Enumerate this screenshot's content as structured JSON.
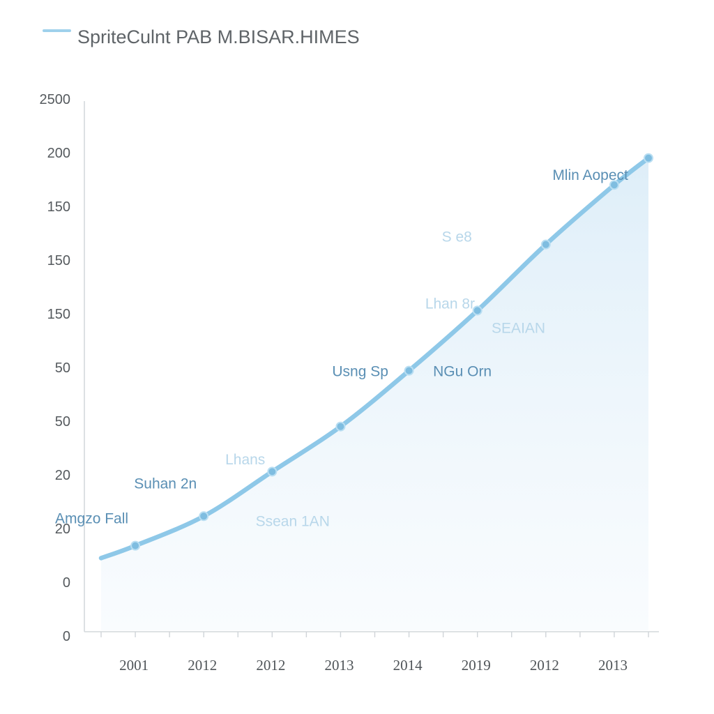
{
  "chart_data": {
    "type": "line",
    "title": "",
    "xlabel": "",
    "ylabel": "",
    "legend": {
      "position": "top-left",
      "entries": [
        {
          "name": "SpriteCulnt PAB M.BISAR.HIMES",
          "color": "#9fd1ec"
        }
      ]
    },
    "y_ticks": [
      "0",
      "0",
      "20",
      "20",
      "50",
      "50",
      "150",
      "150",
      "150",
      "200",
      "2500"
    ],
    "x_ticks": [
      "2001",
      "2012",
      "2012",
      "2013",
      "2014",
      "2019",
      "2012",
      "2013"
    ],
    "ylim": [
      0,
      10
    ],
    "series": [
      {
        "name": "SpriteCulnt PAB M.BISAR.HIMES",
        "color": "#8ec8e8",
        "fill_color": "#e8f3fb",
        "points": [
          {
            "x": 0.0,
            "y": 1.45
          },
          {
            "x": 0.5,
            "y": 1.68
          },
          {
            "x": 1.5,
            "y": 2.23
          },
          {
            "x": 2.5,
            "y": 3.06
          },
          {
            "x": 3.5,
            "y": 3.9
          },
          {
            "x": 4.5,
            "y": 4.94
          },
          {
            "x": 5.5,
            "y": 6.06
          },
          {
            "x": 6.5,
            "y": 7.29
          },
          {
            "x": 7.5,
            "y": 8.4
          },
          {
            "x": 8.0,
            "y": 8.9
          }
        ],
        "markers": [
          0.5,
          1.5,
          2.5,
          3.5,
          4.5,
          5.5,
          6.5,
          7.5,
          8.0
        ]
      }
    ],
    "annotations": [
      {
        "text": "Amgzo Fall",
        "x": 0.5,
        "y": 2.2,
        "style": "strong",
        "anchor": "end"
      },
      {
        "text": "Suhan 2n",
        "x": 1.5,
        "y": 2.85,
        "style": "strong",
        "anchor": "end"
      },
      {
        "text": "Lhans",
        "x": 2.5,
        "y": 3.3,
        "style": "faint",
        "anchor": "end"
      },
      {
        "text": "Ssean 1AN",
        "x": 2.8,
        "y": 2.15,
        "style": "faint",
        "anchor": "middle"
      },
      {
        "text": "Usng Sp",
        "x": 4.3,
        "y": 4.94,
        "style": "strong",
        "anchor": "end"
      },
      {
        "text": "NGu Orn",
        "x": 4.75,
        "y": 4.94,
        "style": "strong",
        "anchor": "start"
      },
      {
        "text": "Lhan 8r",
        "x": 5.1,
        "y": 6.2,
        "style": "faint",
        "anchor": "middle"
      },
      {
        "text": "SEAIAN",
        "x": 6.1,
        "y": 5.75,
        "style": "faint",
        "anchor": "middle"
      },
      {
        "text": "S e8",
        "x": 5.2,
        "y": 7.45,
        "style": "faint",
        "anchor": "middle"
      },
      {
        "text": "Mlin Aopect",
        "x": 7.15,
        "y": 8.6,
        "style": "strong",
        "anchor": "middle"
      }
    ]
  }
}
